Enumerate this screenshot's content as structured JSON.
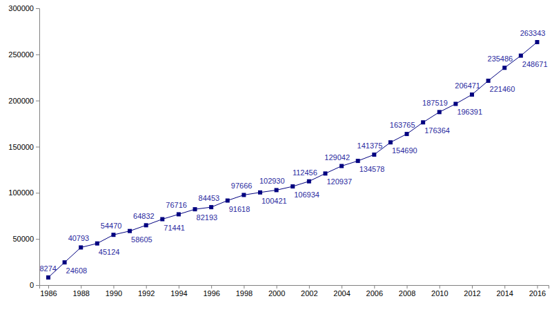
{
  "chart_data": {
    "type": "line",
    "x": [
      1986,
      1987,
      1988,
      1989,
      1990,
      1991,
      1992,
      1993,
      1994,
      1995,
      1996,
      1997,
      1998,
      1999,
      2000,
      2001,
      2002,
      2003,
      2004,
      2005,
      2006,
      2007,
      2008,
      2009,
      2010,
      2011,
      2012,
      2013,
      2014,
      2015,
      2016
    ],
    "values": [
      8274,
      24608,
      40793,
      45124,
      54470,
      58605,
      64832,
      71441,
      76716,
      82193,
      84453,
      91618,
      97666,
      100421,
      102930,
      106934,
      112456,
      120937,
      129042,
      134578,
      141375,
      154690,
      163765,
      176364,
      187519,
      196391,
      206471,
      221460,
      235486,
      248671,
      263343
    ],
    "color": "#000080",
    "marker": "square",
    "line_style": "solid",
    "xlim": [
      1985.45,
      2016.7
    ],
    "xticks": [
      1986,
      1988,
      1990,
      1992,
      1994,
      1996,
      1998,
      2000,
      2002,
      2004,
      2006,
      2008,
      2010,
      2012,
      2014,
      2016
    ],
    "ylim": [
      0,
      300000
    ],
    "yticks": [
      0,
      50000,
      100000,
      150000,
      200000,
      250000,
      300000
    ],
    "grid": false,
    "data_labels": true
  }
}
